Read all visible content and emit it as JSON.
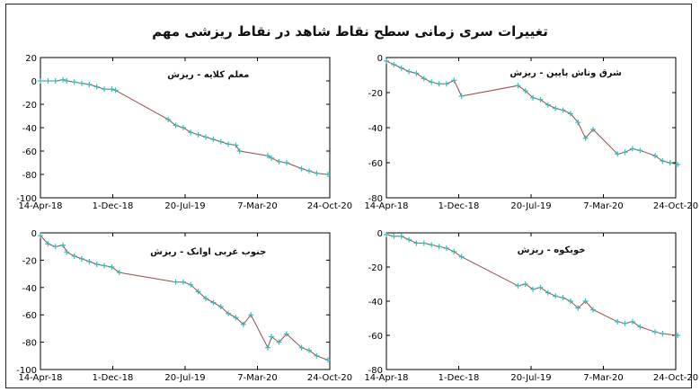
{
  "main_title": "تغییرات سری زمانی سطح نقاط شاهد در نقاط ریزشی مهم",
  "colors": {
    "line": "#9a4b4b",
    "marker": "#2fbfbf",
    "axis": "#000000"
  },
  "chart_data": [
    {
      "type": "line",
      "title": "معلم کلایه - ریزش",
      "xlabel": "",
      "ylabel": "",
      "x_ticks": [
        "14-Apr-18",
        "1-Dec-18",
        "20-Jul-19",
        "7-Mar-20",
        "24-Oct-20"
      ],
      "y_ticks": [
        20,
        0,
        -20,
        -40,
        -60,
        -80,
        -100
      ],
      "ylim": [
        -100,
        20
      ],
      "grid": false,
      "series": [
        {
          "points": [
            [
              "2018-04-14",
              0
            ],
            [
              "2018-05-08",
              0
            ],
            [
              "2018-06-01",
              0
            ],
            [
              "2018-06-25",
              1
            ],
            [
              "2018-07-07",
              0
            ],
            [
              "2018-07-31",
              -1
            ],
            [
              "2018-08-24",
              -2
            ],
            [
              "2018-09-17",
              -3
            ],
            [
              "2018-10-11",
              -5
            ],
            [
              "2018-11-04",
              -7
            ],
            [
              "2018-11-28",
              -7
            ],
            [
              "2018-12-10",
              -8
            ],
            [
              "2019-05-27",
              -33
            ],
            [
              "2019-06-20",
              -38
            ],
            [
              "2019-07-14",
              -40
            ],
            [
              "2019-08-07",
              -44
            ],
            [
              "2019-08-31",
              -46
            ],
            [
              "2019-09-24",
              -48
            ],
            [
              "2019-10-18",
              -50
            ],
            [
              "2019-11-11",
              -52
            ],
            [
              "2019-12-05",
              -54
            ],
            [
              "2019-12-29",
              -55
            ],
            [
              "2020-01-10",
              -60
            ],
            [
              "2020-04-09",
              -64
            ],
            [
              "2020-04-21",
              -66
            ],
            [
              "2020-05-15",
              -69
            ],
            [
              "2020-06-08",
              -70
            ],
            [
              "2020-07-26",
              -75
            ],
            [
              "2020-08-19",
              -77
            ],
            [
              "2020-09-12",
              -79
            ],
            [
              "2020-10-18",
              -80
            ]
          ]
        }
      ]
    },
    {
      "type": "line",
      "title": "شرق وناش پایین - ریزش",
      "xlabel": "",
      "ylabel": "",
      "x_ticks": [
        "14-Apr-18",
        "1-Dec-18",
        "20-Jul-19",
        "7-Mar-20",
        "24-Oct-20"
      ],
      "y_ticks": [
        0,
        -20,
        -40,
        -60,
        -80
      ],
      "ylim": [
        -80,
        0
      ],
      "grid": false,
      "series": [
        {
          "points": [
            [
              "2018-04-14",
              -2
            ],
            [
              "2018-05-08",
              -4
            ],
            [
              "2018-06-01",
              -6
            ],
            [
              "2018-06-25",
              -8
            ],
            [
              "2018-07-19",
              -9
            ],
            [
              "2018-08-12",
              -12
            ],
            [
              "2018-09-05",
              -14
            ],
            [
              "2018-09-29",
              -15
            ],
            [
              "2018-10-23",
              -15
            ],
            [
              "2018-11-16",
              -13
            ],
            [
              "2018-12-10",
              -22
            ],
            [
              "2019-06-08",
              -16
            ],
            [
              "2019-07-02",
              -19
            ],
            [
              "2019-07-26",
              -23
            ],
            [
              "2019-08-19",
              -24
            ],
            [
              "2019-09-12",
              -27
            ],
            [
              "2019-10-06",
              -29
            ],
            [
              "2019-10-30",
              -30
            ],
            [
              "2019-11-23",
              -32
            ],
            [
              "2019-12-17",
              -37
            ],
            [
              "2020-01-10",
              -46
            ],
            [
              "2020-02-03",
              -41
            ],
            [
              "2020-04-21",
              -55
            ],
            [
              "2020-05-15",
              -54
            ],
            [
              "2020-06-08",
              -52
            ],
            [
              "2020-07-02",
              -53
            ],
            [
              "2020-08-19",
              -56
            ],
            [
              "2020-09-12",
              -59
            ],
            [
              "2020-10-06",
              -60
            ],
            [
              "2020-10-30",
              -61
            ]
          ]
        }
      ]
    },
    {
      "type": "line",
      "title": "جنوب غربی اوانک - ریزش",
      "xlabel": "",
      "ylabel": "",
      "x_ticks": [
        "14-Apr-18",
        "1-Dec-18",
        "20-Jul-19",
        "7-Mar-20",
        "24-Oct-20"
      ],
      "y_ticks": [
        0,
        -20,
        -40,
        -60,
        -80,
        -100
      ],
      "ylim": [
        -100,
        0
      ],
      "grid": false,
      "series": [
        {
          "points": [
            [
              "2018-04-14",
              -2
            ],
            [
              "2018-05-08",
              -8
            ],
            [
              "2018-06-01",
              -10
            ],
            [
              "2018-06-25",
              -9
            ],
            [
              "2018-07-07",
              -14
            ],
            [
              "2018-07-31",
              -17
            ],
            [
              "2018-08-24",
              -19
            ],
            [
              "2018-09-17",
              -21
            ],
            [
              "2018-10-11",
              -23
            ],
            [
              "2018-11-04",
              -24
            ],
            [
              "2018-11-28",
              -25
            ],
            [
              "2018-12-22",
              -29
            ],
            [
              "2019-06-20",
              -36
            ],
            [
              "2019-07-14",
              -36
            ],
            [
              "2019-08-07",
              -38
            ],
            [
              "2019-08-31",
              -43
            ],
            [
              "2019-09-24",
              -48
            ],
            [
              "2019-10-18",
              -51
            ],
            [
              "2019-11-11",
              -54
            ],
            [
              "2019-12-05",
              -59
            ],
            [
              "2019-12-29",
              -62
            ],
            [
              "2020-01-22",
              -67
            ],
            [
              "2020-02-15",
              -60
            ],
            [
              "2020-04-09",
              -84
            ],
            [
              "2020-04-21",
              -76
            ],
            [
              "2020-05-15",
              -80
            ],
            [
              "2020-06-08",
              -74
            ],
            [
              "2020-07-26",
              -84
            ],
            [
              "2020-08-19",
              -86
            ],
            [
              "2020-09-12",
              -90
            ],
            [
              "2020-10-18",
              -93
            ]
          ]
        }
      ]
    },
    {
      "type": "line",
      "title": "خوبکوه - ریزش",
      "xlabel": "",
      "ylabel": "",
      "x_ticks": [
        "14-Apr-18",
        "1-Dec-18",
        "20-Jul-19",
        "7-Mar-20",
        "24-Oct-20"
      ],
      "y_ticks": [
        0,
        -20,
        -40,
        -60,
        -80
      ],
      "ylim": [
        -80,
        0
      ],
      "grid": false,
      "series": [
        {
          "points": [
            [
              "2018-04-14",
              -1
            ],
            [
              "2018-05-08",
              -2
            ],
            [
              "2018-06-01",
              -2
            ],
            [
              "2018-06-25",
              -4
            ],
            [
              "2018-07-19",
              -6
            ],
            [
              "2018-08-12",
              -6
            ],
            [
              "2018-09-05",
              -7
            ],
            [
              "2018-09-29",
              -8
            ],
            [
              "2018-10-23",
              -9
            ],
            [
              "2018-11-16",
              -11
            ],
            [
              "2018-12-10",
              -14
            ],
            [
              "2019-06-08",
              -31
            ],
            [
              "2019-07-02",
              -30
            ],
            [
              "2019-07-26",
              -33
            ],
            [
              "2019-08-19",
              -32
            ],
            [
              "2019-09-12",
              -35
            ],
            [
              "2019-10-06",
              -37
            ],
            [
              "2019-10-30",
              -38
            ],
            [
              "2019-11-23",
              -40
            ],
            [
              "2019-12-17",
              -44
            ],
            [
              "2020-01-10",
              -40
            ],
            [
              "2020-02-03",
              -45
            ],
            [
              "2020-04-21",
              -52
            ],
            [
              "2020-05-15",
              -53
            ],
            [
              "2020-06-08",
              -52
            ],
            [
              "2020-07-02",
              -55
            ],
            [
              "2020-08-19",
              -58
            ],
            [
              "2020-09-12",
              -59
            ],
            [
              "2020-10-30",
              -60
            ]
          ]
        }
      ]
    }
  ]
}
